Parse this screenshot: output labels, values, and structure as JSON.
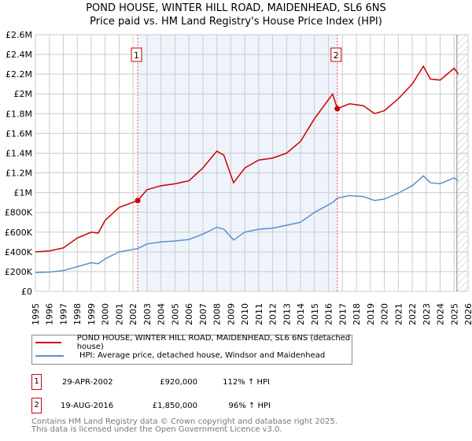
{
  "chart_data": {
    "type": "line",
    "title": "POND HOUSE, WINTER HILL ROAD, MAIDENHEAD, SL6 6NS",
    "subtitle": "Price paid vs. HM Land Registry's House Price Index (HPI)",
    "xlim": [
      1995,
      2026
    ],
    "ylim": [
      0,
      2600000
    ],
    "x_ticks": [
      "1995",
      "1996",
      "1997",
      "1998",
      "1999",
      "2000",
      "2001",
      "2002",
      "2003",
      "2004",
      "2005",
      "2006",
      "2007",
      "2008",
      "2009",
      "2010",
      "2011",
      "2012",
      "2013",
      "2014",
      "2015",
      "2016",
      "2017",
      "2018",
      "2019",
      "2020",
      "2021",
      "2022",
      "2023",
      "2024",
      "2025",
      "2026"
    ],
    "y_ticks": [
      {
        "v": 0,
        "l": "£0"
      },
      {
        "v": 200000,
        "l": "£200K"
      },
      {
        "v": 400000,
        "l": "£400K"
      },
      {
        "v": 600000,
        "l": "£600K"
      },
      {
        "v": 800000,
        "l": "£800K"
      },
      {
        "v": 1000000,
        "l": "£1M"
      },
      {
        "v": 1200000,
        "l": "£1.2M"
      },
      {
        "v": 1400000,
        "l": "£1.4M"
      },
      {
        "v": 1600000,
        "l": "£1.6M"
      },
      {
        "v": 1800000,
        "l": "£1.8M"
      },
      {
        "v": 2000000,
        "l": "£2M"
      },
      {
        "v": 2200000,
        "l": "£2.2M"
      },
      {
        "v": 2400000,
        "l": "£2.4M"
      },
      {
        "v": 2600000,
        "l": "£2.6M"
      }
    ],
    "series": [
      {
        "name": "POND HOUSE, WINTER HILL ROAD, MAIDENHEAD, SL6 6NS (detached house)",
        "color": "#cc0000",
        "x": [
          1995,
          1996,
          1997,
          1998,
          1999,
          1999.5,
          2000,
          2001,
          2002.33,
          2003,
          2004,
          2005,
          2006,
          2007,
          2008,
          2008.5,
          2009.2,
          2010,
          2011,
          2012,
          2013,
          2014,
          2015,
          2016.3,
          2016.63,
          2017.5,
          2018.5,
          2019.3,
          2020,
          2021,
          2022,
          2022.8,
          2023.3,
          2024,
          2025,
          2025.3
        ],
        "y": [
          400000,
          410000,
          440000,
          540000,
          600000,
          590000,
          720000,
          850000,
          920000,
          1030000,
          1070000,
          1090000,
          1120000,
          1250000,
          1420000,
          1380000,
          1100000,
          1250000,
          1330000,
          1350000,
          1400000,
          1520000,
          1750000,
          2000000,
          1850000,
          1900000,
          1880000,
          1800000,
          1830000,
          1950000,
          2100000,
          2280000,
          2150000,
          2140000,
          2260000,
          2200000
        ]
      },
      {
        "name": "HPI: Average price, detached house, Windsor and Maidenhead",
        "color": "#5b8fd0",
        "x": [
          1995,
          1996,
          1997,
          1998,
          1999,
          1999.5,
          2000,
          2001,
          2002.33,
          2003,
          2004,
          2005,
          2006,
          2007,
          2008,
          2008.5,
          2009.2,
          2010,
          2011,
          2012,
          2013,
          2014,
          2015,
          2016.3,
          2016.63,
          2017.5,
          2018.5,
          2019.3,
          2020,
          2021,
          2022,
          2022.8,
          2023.3,
          2024,
          2025,
          2025.3
        ],
        "y": [
          190000,
          195000,
          210000,
          250000,
          290000,
          280000,
          330000,
          400000,
          433000,
          480000,
          500000,
          510000,
          525000,
          580000,
          650000,
          630000,
          520000,
          600000,
          630000,
          640000,
          670000,
          700000,
          800000,
          900000,
          944000,
          970000,
          960000,
          920000,
          935000,
          995000,
          1070000,
          1170000,
          1100000,
          1090000,
          1150000,
          1120000
        ]
      }
    ],
    "sales": [
      {
        "label": "1",
        "x": 2002.33,
        "y": 920000,
        "date": "29-APR-2002",
        "price": "£920,000",
        "hpi": "112% ↑ HPI"
      },
      {
        "label": "2",
        "x": 2016.63,
        "y": 1850000,
        "date": "19-AUG-2016",
        "price": "£1,850,000",
        "hpi": "96% ↑ HPI"
      }
    ],
    "hatch_from": 2025.2
  },
  "footer": {
    "line1": "Contains HM Land Registry data © Crown copyright and database right 2025.",
    "line2": "This data is licensed under the Open Government Licence v3.0."
  }
}
